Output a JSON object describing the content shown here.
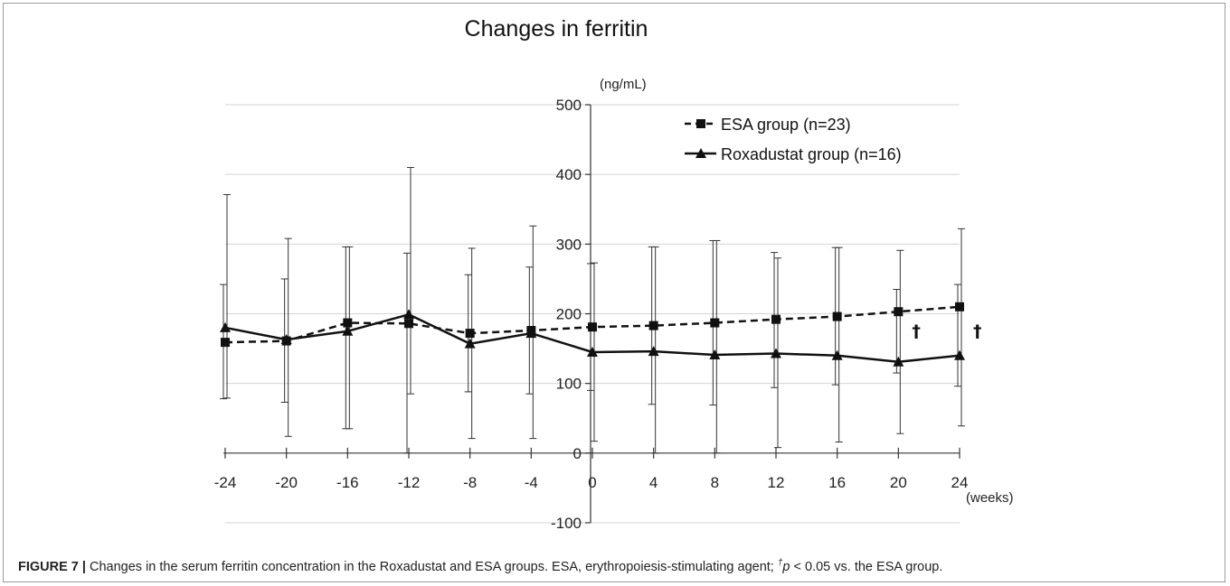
{
  "chart_data": {
    "type": "line",
    "title": "Changes in ferritin",
    "ylabel": "(ng/mL)",
    "xlabel": "(weeks)",
    "ylim": [
      -100,
      500
    ],
    "yticks": [
      -100,
      0,
      100,
      200,
      300,
      400,
      500
    ],
    "xlim": [
      -24,
      24
    ],
    "xticks": [
      -24,
      -20,
      -16,
      -12,
      -8,
      -4,
      0,
      4,
      8,
      12,
      16,
      20,
      24
    ],
    "grid": true,
    "legend_position": "top-right",
    "series": [
      {
        "name": "ESA group (n=23)",
        "marker": "square",
        "line": "dashed",
        "x": [
          -24,
          -20,
          -16,
          -12,
          -8,
          -4,
          0,
          4,
          8,
          12,
          16,
          20,
          24
        ],
        "values": [
          159,
          161,
          187,
          186,
          172,
          176,
          181,
          183,
          187,
          192,
          196,
          203,
          210
        ],
        "error_plus": [
          83,
          89,
          109,
          101,
          84,
          91,
          91,
          113,
          118,
          96,
          99,
          32,
          32
        ],
        "error_minus": [
          81,
          88,
          152,
          186,
          84,
          91,
          91,
          113,
          118,
          98,
          98,
          88,
          114
        ]
      },
      {
        "name": "Roxadustat group (n=16)",
        "marker": "triangle",
        "line": "solid",
        "x": [
          -24,
          -20,
          -16,
          -12,
          -8,
          -4,
          0,
          4,
          8,
          12,
          16,
          20,
          24
        ],
        "values": [
          180,
          163,
          175,
          199,
          157,
          172,
          145,
          146,
          141,
          143,
          140,
          131,
          140
        ],
        "error_plus": [
          191,
          145,
          121,
          211,
          137,
          154,
          128,
          150,
          164,
          137,
          155,
          160,
          182
        ],
        "error_minus": [
          101,
          139,
          140,
          114,
          136,
          151,
          128,
          146,
          141,
          135,
          124,
          103,
          101
        ]
      }
    ],
    "annotations": [
      {
        "text": "†",
        "x": 20
      },
      {
        "text": "†",
        "x": 24
      }
    ]
  },
  "caption": {
    "label": "FIGURE 7 |",
    "text1": " Changes in the serum ferritin concentration in the Roxadustat and ESA groups. ESA, erythropoiesis-stimulating agent; ",
    "dagger": "†",
    "p": "p",
    "text2": " < 0.05 vs. the ESA group."
  }
}
